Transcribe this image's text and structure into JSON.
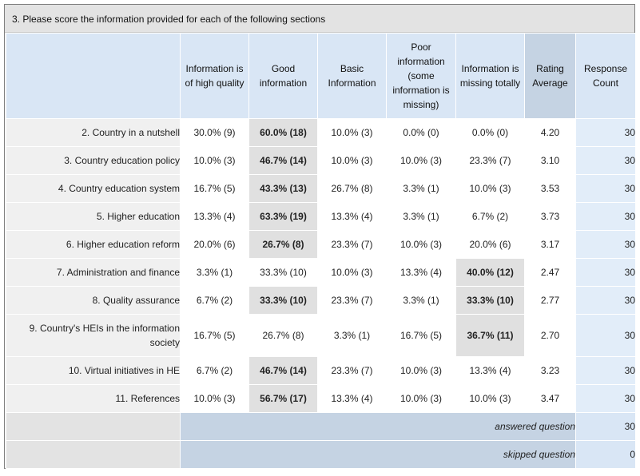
{
  "question_title": "3. Please score the information provided for each of the following sections",
  "columns": [
    {
      "label": "Information is of high quality"
    },
    {
      "label": "Good information"
    },
    {
      "label": "Basic Information"
    },
    {
      "label": "Poor information (some information is missing)"
    },
    {
      "label": "Information is missing totally"
    },
    {
      "label": "Rating Average"
    },
    {
      "label": "Response Count"
    }
  ],
  "rows": [
    {
      "label": "2. Country in a nutshell",
      "cells": [
        "30.0% (9)",
        "60.0% (18)",
        "10.0% (3)",
        "0.0% (0)",
        "0.0% (0)"
      ],
      "highlight": [
        1
      ],
      "average": "4.20",
      "count": "30"
    },
    {
      "label": "3. Country education policy",
      "cells": [
        "10.0% (3)",
        "46.7% (14)",
        "10.0% (3)",
        "10.0% (3)",
        "23.3% (7)"
      ],
      "highlight": [
        1
      ],
      "average": "3.10",
      "count": "30"
    },
    {
      "label": "4. Country education system",
      "cells": [
        "16.7% (5)",
        "43.3% (13)",
        "26.7% (8)",
        "3.3% (1)",
        "10.0% (3)"
      ],
      "highlight": [
        1
      ],
      "average": "3.53",
      "count": "30"
    },
    {
      "label": "5. Higher education",
      "cells": [
        "13.3% (4)",
        "63.3% (19)",
        "13.3% (4)",
        "3.3% (1)",
        "6.7% (2)"
      ],
      "highlight": [
        1
      ],
      "average": "3.73",
      "count": "30"
    },
    {
      "label": "6. Higher education reform",
      "cells": [
        "20.0% (6)",
        "26.7% (8)",
        "23.3% (7)",
        "10.0% (3)",
        "20.0% (6)"
      ],
      "highlight": [
        1
      ],
      "average": "3.17",
      "count": "30"
    },
    {
      "label": "7. Administration and finance",
      "cells": [
        "3.3% (1)",
        "33.3% (10)",
        "10.0% (3)",
        "13.3% (4)",
        "40.0% (12)"
      ],
      "highlight": [
        4
      ],
      "average": "2.47",
      "count": "30"
    },
    {
      "label": "8. Quality assurance",
      "cells": [
        "6.7% (2)",
        "33.3% (10)",
        "23.3% (7)",
        "3.3% (1)",
        "33.3% (10)"
      ],
      "highlight": [
        1,
        4
      ],
      "average": "2.77",
      "count": "30"
    },
    {
      "label": "9. Country's HEIs in the information society",
      "cells": [
        "16.7% (5)",
        "26.7% (8)",
        "3.3% (1)",
        "16.7% (5)",
        "36.7% (11)"
      ],
      "highlight": [
        4
      ],
      "average": "2.70",
      "count": "30"
    },
    {
      "label": "10. Virtual initiatives in HE",
      "cells": [
        "6.7% (2)",
        "46.7% (14)",
        "23.3% (7)",
        "10.0% (3)",
        "13.3% (4)"
      ],
      "highlight": [
        1
      ],
      "average": "3.23",
      "count": "30"
    },
    {
      "label": "11. References",
      "cells": [
        "10.0% (3)",
        "56.7% (17)",
        "13.3% (4)",
        "10.0% (3)",
        "10.0% (3)"
      ],
      "highlight": [
        1
      ],
      "average": "3.47",
      "count": "30"
    }
  ],
  "footer": {
    "answered_label": "answered question",
    "answered_value": "30",
    "skipped_label": "skipped question",
    "skipped_value": "0"
  }
}
